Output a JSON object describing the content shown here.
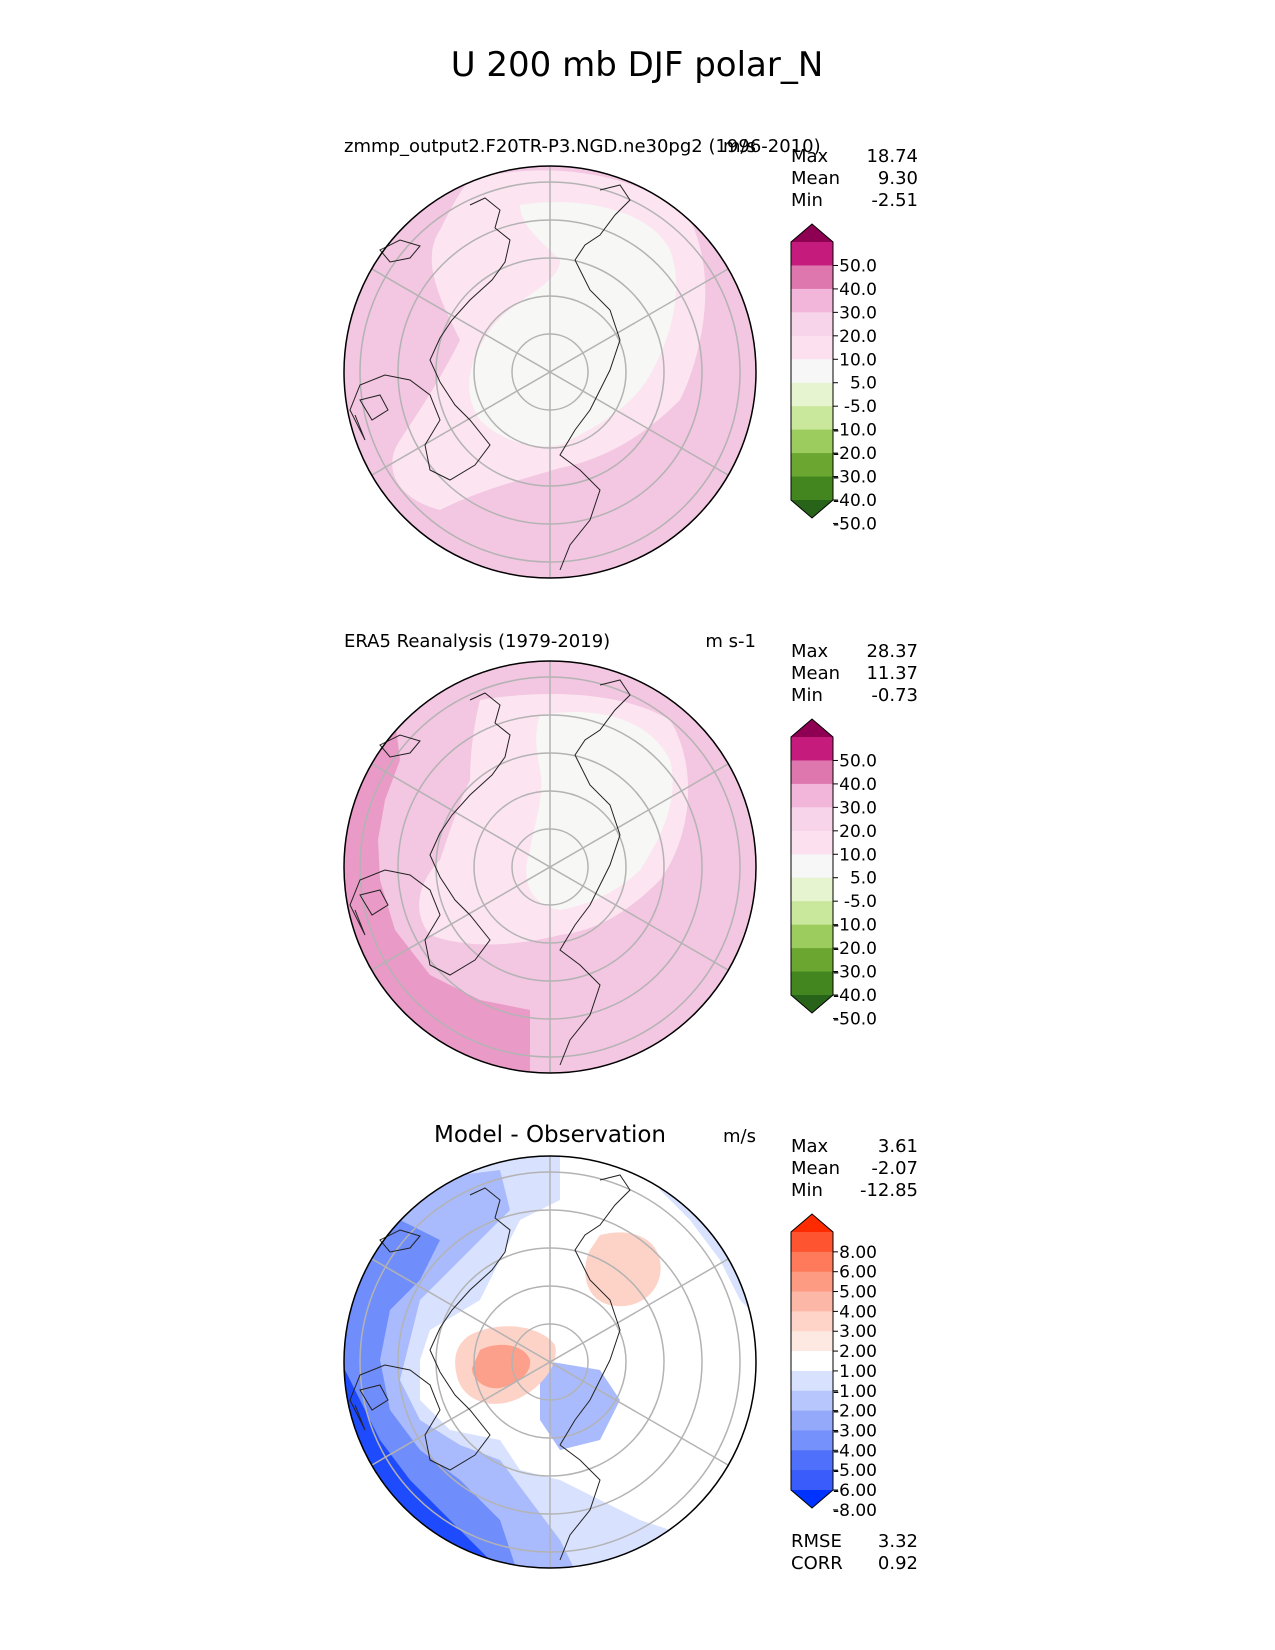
{
  "figure": {
    "title": "U 200 mb DJF polar_N"
  },
  "chart_data": [
    {
      "type": "heatmap",
      "id": "test",
      "title_left": "zmmp_output2.F20TR-P3.NGD.ne30pg2 (1996-2010)",
      "units": "m/s",
      "stats": [
        {
          "label": "Max",
          "value": "18.74"
        },
        {
          "label": "Mean",
          "value": "9.30"
        },
        {
          "label": "Min",
          "value": "-2.51"
        }
      ],
      "colorbar": {
        "ticks": [
          "50.0",
          "40.0",
          "30.0",
          "20.0",
          "10.0",
          "5.0",
          "-5.0",
          "-10.0",
          "-20.0",
          "-30.0",
          "-40.0",
          "-50.0"
        ],
        "colors_top_to_bottom": [
          "#8e0152",
          "#c51b7d",
          "#de77ae",
          "#f1b6da",
          "#f8d4ea",
          "#fde0ef",
          "#f7f7f7",
          "#e6f5d0",
          "#c9e89b",
          "#9ccc5e",
          "#6ba730",
          "#43861f",
          "#276419"
        ]
      },
      "field_colors": {
        "base": "#f3c6e1",
        "band": "#fce4f0",
        "core": "#f7f7f6"
      }
    },
    {
      "type": "heatmap",
      "id": "reference",
      "title_left": "ERA5 Reanalysis (1979-2019)",
      "units": "m s-1",
      "stats": [
        {
          "label": "Max",
          "value": "28.37"
        },
        {
          "label": "Mean",
          "value": "11.37"
        },
        {
          "label": "Min",
          "value": "-0.73"
        }
      ],
      "colorbar": {
        "ticks": [
          "50.0",
          "40.0",
          "30.0",
          "20.0",
          "10.0",
          "5.0",
          "-5.0",
          "-10.0",
          "-20.0",
          "-30.0",
          "-40.0",
          "-50.0"
        ],
        "colors_top_to_bottom": [
          "#8e0152",
          "#c51b7d",
          "#de77ae",
          "#f1b6da",
          "#f8d4ea",
          "#fde0ef",
          "#f7f7f7",
          "#e6f5d0",
          "#c9e89b",
          "#9ccc5e",
          "#6ba730",
          "#43861f",
          "#276419"
        ]
      },
      "field_colors": {
        "base": "#f3c6e1",
        "band": "#fce4f0",
        "core": "#f7f7f6",
        "jet": "#e99ac7"
      }
    },
    {
      "type": "heatmap",
      "id": "diff",
      "title_center": "Model - Observation",
      "units": "m/s",
      "stats": [
        {
          "label": "Max",
          "value": "3.61"
        },
        {
          "label": "Mean",
          "value": "-2.07"
        },
        {
          "label": "Min",
          "value": "-12.85"
        }
      ],
      "metrics": [
        {
          "label": "RMSE",
          "value": "3.32"
        },
        {
          "label": "CORR",
          "value": "0.92"
        }
      ],
      "colorbar": {
        "ticks": [
          "8.00",
          "6.00",
          "5.00",
          "4.00",
          "3.00",
          "2.00",
          "1.00",
          "-1.00",
          "-2.00",
          "-3.00",
          "-4.00",
          "-5.00",
          "-6.00",
          "-8.00"
        ],
        "colors_top_to_bottom": [
          "#fe2a00",
          "#fe5530",
          "#fe7a5a",
          "#fd9a82",
          "#fdb7a6",
          "#fed3c8",
          "#fde9e2",
          "#ffffff",
          "#d8e2fe",
          "#b7c7fd",
          "#95a9fb",
          "#7591fb",
          "#4f70fa",
          "#3a5cfa",
          "#0033ff"
        ]
      },
      "field_colors": {
        "white": "#ffffff",
        "light_blue": "#d8e2fe",
        "mid_blue": "#a9bbfc",
        "blue": "#6f8dfb",
        "deep_blue": "#1f4bfe",
        "light_red": "#fdd3c8",
        "red": "#fca08b"
      }
    }
  ]
}
